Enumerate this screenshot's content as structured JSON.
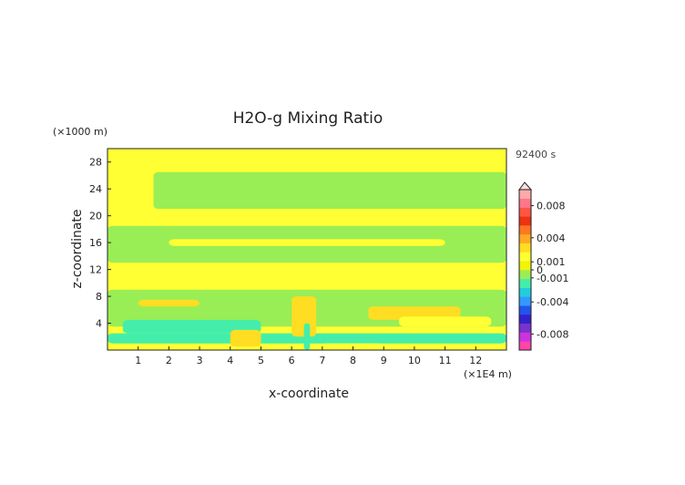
{
  "chart_data": {
    "type": "heatmap",
    "title": "H2O-g Mixing Ratio",
    "xlabel": "x-coordinate",
    "ylabel": "z-coordinate",
    "x_unit": "(×1E4 m)",
    "y_unit": "(×1000 m)",
    "time_label": "92400 s",
    "xlim": [
      0,
      13
    ],
    "ylim": [
      0,
      30
    ],
    "x_ticks": [
      1,
      2,
      3,
      4,
      5,
      6,
      7,
      8,
      9,
      10,
      11,
      12
    ],
    "y_ticks": [
      4,
      8,
      12,
      16,
      20,
      24,
      28
    ],
    "colorbar": {
      "tick_labels": [
        "0.008",
        "0.004",
        "0.001",
        "0",
        "-0.001",
        "-0.004",
        "-0.008"
      ],
      "tick_values": [
        0.008,
        0.004,
        0.001,
        0,
        -0.001,
        -0.004,
        -0.008
      ],
      "range": [
        -0.01,
        0.01
      ],
      "colors": [
        "#ff44aa",
        "#cc33dd",
        "#7733cc",
        "#3322cc",
        "#2255ee",
        "#3399ff",
        "#22ccdd",
        "#44eeaa",
        "#99ee55",
        "#f2f20a",
        "#ffff33",
        "#ffdd22",
        "#ffaa22",
        "#ff7722",
        "#ee3311",
        "#ff5544",
        "#ff7788",
        "#ffaaaa"
      ]
    },
    "background_value": 0.0015,
    "regions": [
      {
        "x": [
          0,
          13
        ],
        "z": [
          26.5,
          29
        ],
        "value": 0.0015
      },
      {
        "x": [
          1.5,
          13
        ],
        "z": [
          21,
          26.5
        ],
        "value": -0.0005
      },
      {
        "x": [
          0,
          13
        ],
        "z": [
          18.5,
          21
        ],
        "value": 0.0015
      },
      {
        "x": [
          0,
          13
        ],
        "z": [
          13,
          18.5
        ],
        "value": -0.0005
      },
      {
        "x": [
          2,
          11
        ],
        "z": [
          15.5,
          16.5
        ],
        "value": 0.0015
      },
      {
        "x": [
          0,
          13
        ],
        "z": [
          9,
          13
        ],
        "value": 0.0015
      },
      {
        "x": [
          0,
          13
        ],
        "z": [
          3.5,
          9
        ],
        "value": -0.0005
      },
      {
        "x": [
          1,
          3
        ],
        "z": [
          6.5,
          7.5
        ],
        "value": 0.003
      },
      {
        "x": [
          8.5,
          11.5
        ],
        "z": [
          4.5,
          6.5
        ],
        "value": 0.003
      },
      {
        "x": [
          9.5,
          12.5
        ],
        "z": [
          3.5,
          5
        ],
        "value": 0.002
      },
      {
        "x": [
          0.5,
          5
        ],
        "z": [
          2.5,
          4.5
        ],
        "value": -0.0015
      },
      {
        "x": [
          0,
          13
        ],
        "z": [
          1,
          2.5
        ],
        "value": -0.0015
      },
      {
        "x": [
          4,
          5
        ],
        "z": [
          0.5,
          3
        ],
        "value": 0.003
      },
      {
        "x": [
          6,
          6.8
        ],
        "z": [
          2,
          8
        ],
        "value": 0.003
      },
      {
        "x": [
          6.4,
          6.6
        ],
        "z": [
          0,
          4
        ],
        "value": -0.002
      },
      {
        "x": [
          7,
          9
        ],
        "z": [
          0,
          1
        ],
        "value": 0.002
      }
    ]
  }
}
